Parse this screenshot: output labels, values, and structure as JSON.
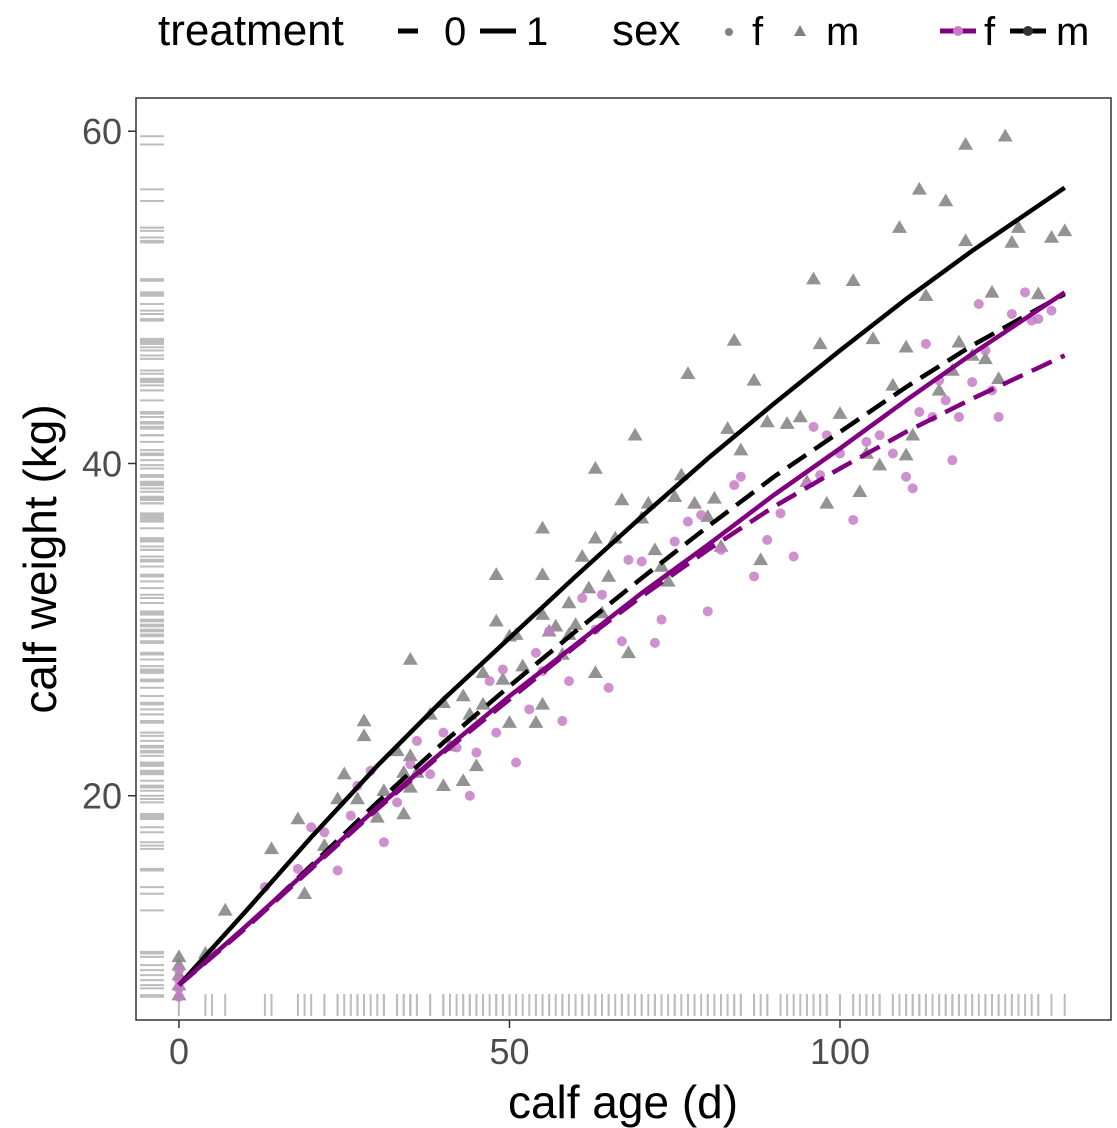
{
  "chart_data": {
    "type": "scatter",
    "xlabel": "calf age (d)",
    "ylabel": "calf weight (kg)",
    "xlim": [
      -6.5,
      141
    ],
    "ylim": [
      6.5,
      62
    ],
    "xticks": [
      0,
      50,
      100
    ],
    "yticks": [
      20,
      40,
      60
    ],
    "grid": false,
    "legend_position": "top",
    "legend": {
      "treatment": {
        "title": "treatment",
        "entries": [
          {
            "label": "0",
            "linetype": "dashed"
          },
          {
            "label": "1",
            "linetype": "solid"
          }
        ]
      },
      "sex_shape": {
        "title": "sex",
        "entries": [
          {
            "label": "f",
            "shape": "circle"
          },
          {
            "label": "m",
            "shape": "triangle"
          }
        ]
      },
      "sex_color": {
        "entries": [
          {
            "label": "f",
            "color": "#800080"
          },
          {
            "label": "m",
            "color": "#000000"
          }
        ]
      }
    },
    "colors": {
      "female_line": "#800080",
      "male_line": "#000000",
      "female_points": "#c77cc7",
      "male_points": "#808080",
      "rug": "#bdbdbd",
      "panel_border": "#333333"
    },
    "fit_lines": [
      {
        "sex": "m",
        "treatment": "1",
        "x": [
          0,
          10,
          20,
          30,
          40,
          50,
          60,
          70,
          80,
          90,
          100,
          110,
          120,
          134
        ],
        "y": [
          8.6,
          13.0,
          17.5,
          21.8,
          25.8,
          29.5,
          33.2,
          36.8,
          40.3,
          43.6,
          46.8,
          49.9,
          52.8,
          56.6
        ]
      },
      {
        "sex": "m",
        "treatment": "0",
        "x": [
          0,
          10,
          20,
          30,
          40,
          50,
          60,
          70,
          80,
          90,
          100,
          110,
          120,
          134
        ],
        "y": [
          8.6,
          12.0,
          15.8,
          19.6,
          23.2,
          26.6,
          29.9,
          33.1,
          36.2,
          39.2,
          41.9,
          44.6,
          47.1,
          50.2
        ]
      },
      {
        "sex": "f",
        "treatment": "1",
        "x": [
          0,
          10,
          20,
          30,
          40,
          50,
          60,
          70,
          80,
          90,
          100,
          110,
          120,
          134
        ],
        "y": [
          8.6,
          12.1,
          15.7,
          19.3,
          22.7,
          26.0,
          29.1,
          32.2,
          35.1,
          38.1,
          40.9,
          43.8,
          46.6,
          50.3
        ]
      },
      {
        "sex": "f",
        "treatment": "0",
        "x": [
          0,
          10,
          20,
          30,
          40,
          50,
          60,
          70,
          80,
          90,
          100,
          110,
          120,
          134
        ],
        "y": [
          8.6,
          12.0,
          15.6,
          19.2,
          22.6,
          25.8,
          29.0,
          32.0,
          34.8,
          37.4,
          39.7,
          41.9,
          43.9,
          46.5
        ]
      }
    ],
    "points_m": [
      [
        0,
        8.0
      ],
      [
        0,
        8.6
      ],
      [
        0,
        9.2
      ],
      [
        0,
        9.8
      ],
      [
        0,
        10.3
      ],
      [
        4,
        10.5
      ],
      [
        7,
        13.1
      ],
      [
        14,
        16.8
      ],
      [
        18,
        18.6
      ],
      [
        19,
        14.1
      ],
      [
        22,
        17.0
      ],
      [
        24,
        19.8
      ],
      [
        25,
        21.3
      ],
      [
        27,
        19.8
      ],
      [
        28,
        24.5
      ],
      [
        28,
        23.6
      ],
      [
        30,
        18.7
      ],
      [
        31,
        20.3
      ],
      [
        33,
        22.7
      ],
      [
        34,
        21.4
      ],
      [
        34,
        18.9
      ],
      [
        35,
        22.4
      ],
      [
        35,
        20.5
      ],
      [
        35,
        28.2
      ],
      [
        36,
        21.4
      ],
      [
        38,
        24.9
      ],
      [
        40,
        25.6
      ],
      [
        40,
        20.6
      ],
      [
        41,
        23.0
      ],
      [
        43,
        20.9
      ],
      [
        43,
        26.0
      ],
      [
        44,
        24.9
      ],
      [
        45,
        21.8
      ],
      [
        46,
        25.5
      ],
      [
        46,
        27.4
      ],
      [
        48,
        30.5
      ],
      [
        48,
        33.3
      ],
      [
        49,
        27.0
      ],
      [
        50,
        29.6
      ],
      [
        50,
        24.4
      ],
      [
        51,
        29.7
      ],
      [
        52,
        27.8
      ],
      [
        54,
        24.4
      ],
      [
        55,
        30.9
      ],
      [
        55,
        36.1
      ],
      [
        55,
        25.5
      ],
      [
        55,
        33.3
      ],
      [
        56,
        29.9
      ],
      [
        57,
        30.2
      ],
      [
        58,
        28.5
      ],
      [
        59,
        29.7
      ],
      [
        59,
        31.6
      ],
      [
        60,
        30.3
      ],
      [
        61,
        34.4
      ],
      [
        62,
        32.5
      ],
      [
        63,
        35.5
      ],
      [
        63,
        39.7
      ],
      [
        63,
        27.4
      ],
      [
        64,
        31.0
      ],
      [
        65,
        33.2
      ],
      [
        66,
        35.5
      ],
      [
        67,
        37.8
      ],
      [
        68,
        28.6
      ],
      [
        69,
        41.7
      ],
      [
        70,
        36.7
      ],
      [
        71,
        37.6
      ],
      [
        72,
        34.8
      ],
      [
        73,
        33.8
      ],
      [
        74,
        32.9
      ],
      [
        75,
        38.0
      ],
      [
        76,
        39.3
      ],
      [
        77,
        45.4
      ],
      [
        78,
        37.6
      ],
      [
        80,
        36.8
      ],
      [
        81,
        37.9
      ],
      [
        82,
        35.0
      ],
      [
        83,
        42.1
      ],
      [
        84,
        47.4
      ],
      [
        85,
        40.8
      ],
      [
        87,
        45.0
      ],
      [
        88,
        34.2
      ],
      [
        89,
        42.5
      ],
      [
        92,
        42.4
      ],
      [
        94,
        42.8
      ],
      [
        95,
        38.9
      ],
      [
        96,
        51.1
      ],
      [
        97,
        47.2
      ],
      [
        98,
        37.6
      ],
      [
        100,
        43.0
      ],
      [
        102,
        51.0
      ],
      [
        103,
        38.3
      ],
      [
        104,
        40.6
      ],
      [
        105,
        47.5
      ],
      [
        106,
        39.9
      ],
      [
        108,
        44.7
      ],
      [
        109,
        54.2
      ],
      [
        110,
        47.0
      ],
      [
        110,
        40.5
      ],
      [
        111,
        41.7
      ],
      [
        112,
        56.5
      ],
      [
        113,
        50.1
      ],
      [
        115,
        44.4
      ],
      [
        116,
        55.8
      ],
      [
        117,
        45.6
      ],
      [
        118,
        47.3
      ],
      [
        119,
        53.4
      ],
      [
        119,
        59.2
      ],
      [
        120,
        46.5
      ],
      [
        122,
        46.3
      ],
      [
        123,
        50.3
      ],
      [
        124,
        45.1
      ],
      [
        125,
        59.7
      ],
      [
        126,
        53.3
      ],
      [
        127,
        54.2
      ],
      [
        130,
        50.2
      ],
      [
        132,
        53.6
      ],
      [
        134,
        54.0
      ]
    ],
    "points_f": [
      [
        0,
        7.9
      ],
      [
        0,
        8.4
      ],
      [
        0,
        8.9
      ],
      [
        0,
        9.5
      ],
      [
        5,
        10.6
      ],
      [
        13,
        14.5
      ],
      [
        18,
        15.6
      ],
      [
        20,
        18.1
      ],
      [
        22,
        17.8
      ],
      [
        24,
        15.5
      ],
      [
        26,
        18.8
      ],
      [
        27,
        20.6
      ],
      [
        29,
        21.5
      ],
      [
        31,
        17.2
      ],
      [
        33,
        19.6
      ],
      [
        35,
        21.9
      ],
      [
        36,
        23.3
      ],
      [
        38,
        21.3
      ],
      [
        40,
        23.8
      ],
      [
        42,
        22.9
      ],
      [
        44,
        20.0
      ],
      [
        45,
        22.6
      ],
      [
        47,
        26.9
      ],
      [
        48,
        23.8
      ],
      [
        49,
        27.6
      ],
      [
        51,
        22.0
      ],
      [
        53,
        25.2
      ],
      [
        54,
        28.6
      ],
      [
        55,
        27.5
      ],
      [
        56,
        29.9
      ],
      [
        58,
        24.5
      ],
      [
        59,
        26.9
      ],
      [
        61,
        31.9
      ],
      [
        63,
        30.0
      ],
      [
        64,
        32.1
      ],
      [
        65,
        26.5
      ],
      [
        67,
        29.3
      ],
      [
        68,
        34.2
      ],
      [
        70,
        34.1
      ],
      [
        72,
        29.2
      ],
      [
        73,
        30.6
      ],
      [
        75,
        35.3
      ],
      [
        77,
        36.5
      ],
      [
        79,
        36.9
      ],
      [
        80,
        31.1
      ],
      [
        82,
        34.8
      ],
      [
        84,
        38.7
      ],
      [
        85,
        39.2
      ],
      [
        87,
        33.2
      ],
      [
        89,
        35.4
      ],
      [
        91,
        37.0
      ],
      [
        93,
        34.4
      ],
      [
        95,
        38.8
      ],
      [
        96,
        42.2
      ],
      [
        97,
        39.3
      ],
      [
        98,
        41.7
      ],
      [
        100,
        40.6
      ],
      [
        102,
        36.6
      ],
      [
        104,
        41.3
      ],
      [
        106,
        41.7
      ],
      [
        108,
        40.6
      ],
      [
        110,
        39.2
      ],
      [
        111,
        38.5
      ],
      [
        112,
        43.1
      ],
      [
        113,
        47.2
      ],
      [
        114,
        42.8
      ],
      [
        115,
        45.0
      ],
      [
        116,
        43.8
      ],
      [
        117,
        40.2
      ],
      [
        118,
        42.8
      ],
      [
        120,
        44.9
      ],
      [
        121,
        49.6
      ],
      [
        122,
        46.8
      ],
      [
        123,
        44.4
      ],
      [
        124,
        42.8
      ],
      [
        126,
        49.0
      ],
      [
        128,
        50.3
      ],
      [
        129,
        48.6
      ],
      [
        130,
        48.7
      ],
      [
        132,
        49.2
      ]
    ]
  }
}
